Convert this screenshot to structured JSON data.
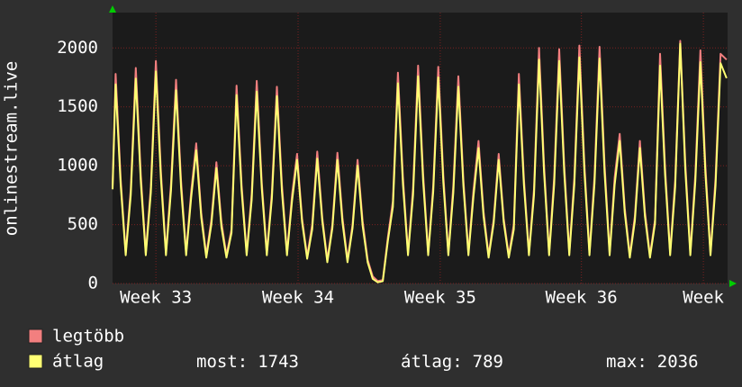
{
  "chart_data": {
    "type": "line",
    "ylabel": "onlinestream.live",
    "xlim": [
      0,
      30.5
    ],
    "ylim": [
      0,
      2300
    ],
    "yticks": [
      0,
      500,
      1000,
      1500,
      2000
    ],
    "xticks": [
      {
        "value": 2.15,
        "label": "Week 33"
      },
      {
        "value": 9.2,
        "label": "Week 34"
      },
      {
        "value": 16.25,
        "label": "Week 35"
      },
      {
        "value": 23.25,
        "label": "Week 36"
      },
      {
        "value": 29.3,
        "label": "Week"
      }
    ],
    "grid": true,
    "x": [
      0,
      0.15,
      0.4,
      0.65,
      0.9,
      1.15,
      1.4,
      1.65,
      1.9,
      2.15,
      2.4,
      2.65,
      2.9,
      3.15,
      3.4,
      3.65,
      3.9,
      4.15,
      4.4,
      4.65,
      4.9,
      5.15,
      5.4,
      5.65,
      5.9,
      6.15,
      6.4,
      6.65,
      6.9,
      7.15,
      7.4,
      7.65,
      7.9,
      8.15,
      8.4,
      8.65,
      8.9,
      9.15,
      9.4,
      9.65,
      9.9,
      10.15,
      10.4,
      10.65,
      10.9,
      11.15,
      11.4,
      11.65,
      11.9,
      12.15,
      12.4,
      12.65,
      12.9,
      13.15,
      13.4,
      13.65,
      13.9,
      14.15,
      14.4,
      14.65,
      14.9,
      15.15,
      15.4,
      15.65,
      15.9,
      16.15,
      16.4,
      16.65,
      16.9,
      17.15,
      17.4,
      17.65,
      17.9,
      18.15,
      18.4,
      18.65,
      18.9,
      19.15,
      19.4,
      19.65,
      19.9,
      20.15,
      20.4,
      20.65,
      20.9,
      21.15,
      21.4,
      21.65,
      21.9,
      22.15,
      22.4,
      22.65,
      22.9,
      23.15,
      23.4,
      23.65,
      23.9,
      24.15,
      24.4,
      24.65,
      24.9,
      25.15,
      25.4,
      25.65,
      25.9,
      26.15,
      26.4,
      26.65,
      26.9,
      27.15,
      27.4,
      27.65,
      27.9,
      28.15,
      28.4,
      28.65,
      28.9,
      29.15,
      29.4,
      29.65,
      29.9,
      30.15,
      30.45
    ],
    "series": [
      {
        "name": "legtöbb",
        "color": "#f27f7f",
        "values": [
          820,
          1780,
          890,
          260,
          800,
          1830,
          920,
          260,
          820,
          1890,
          950,
          260,
          850,
          1730,
          870,
          260,
          780,
          1190,
          600,
          240,
          540,
          1030,
          520,
          240,
          460,
          1680,
          840,
          260,
          760,
          1720,
          860,
          260,
          770,
          1670,
          840,
          260,
          750,
          1100,
          550,
          230,
          500,
          1120,
          560,
          200,
          500,
          1110,
          560,
          200,
          500,
          1050,
          530,
          200,
          60,
          20,
          30,
          390,
          700,
          1790,
          900,
          260,
          810,
          1850,
          930,
          260,
          830,
          1840,
          920,
          260,
          830,
          1760,
          880,
          260,
          790,
          1210,
          610,
          240,
          540,
          1100,
          550,
          240,
          500,
          1780,
          890,
          260,
          800,
          2000,
          1000,
          260,
          900,
          1990,
          1000,
          260,
          900,
          2020,
          1010,
          260,
          910,
          2010,
          1010,
          260,
          900,
          1270,
          640,
          240,
          570,
          1210,
          610,
          240,
          540,
          1950,
          980,
          260,
          880,
          2060,
          1030,
          260,
          930,
          1980,
          990,
          260,
          890,
          1950,
          1900
        ]
      },
      {
        "name": "átlag",
        "color": "#ffff73",
        "values": [
          800,
          1690,
          840,
          240,
          750,
          1740,
          860,
          240,
          770,
          1800,
          890,
          240,
          790,
          1640,
          810,
          240,
          730,
          1130,
          560,
          220,
          500,
          980,
          480,
          220,
          430,
          1600,
          790,
          240,
          710,
          1630,
          810,
          240,
          720,
          1590,
          780,
          240,
          700,
          1050,
          520,
          210,
          460,
          1060,
          530,
          180,
          470,
          1050,
          520,
          180,
          470,
          1000,
          490,
          180,
          40,
          10,
          20,
          360,
          650,
          1700,
          840,
          240,
          750,
          1760,
          870,
          240,
          780,
          1750,
          860,
          240,
          770,
          1670,
          830,
          240,
          740,
          1150,
          570,
          220,
          510,
          1050,
          520,
          220,
          460,
          1690,
          840,
          240,
          750,
          1900,
          940,
          240,
          840,
          1890,
          940,
          240,
          840,
          1920,
          950,
          240,
          850,
          1910,
          940,
          240,
          840,
          1210,
          600,
          220,
          530,
          1150,
          570,
          220,
          510,
          1850,
          920,
          240,
          820,
          2036,
          970,
          240,
          870,
          1880,
          930,
          240,
          830,
          1870,
          1743
        ]
      }
    ],
    "stats": [
      {
        "label": "most:",
        "value": 1743
      },
      {
        "label": "átlag:",
        "value": 789
      },
      {
        "label": "max:",
        "value": 2036
      }
    ]
  }
}
